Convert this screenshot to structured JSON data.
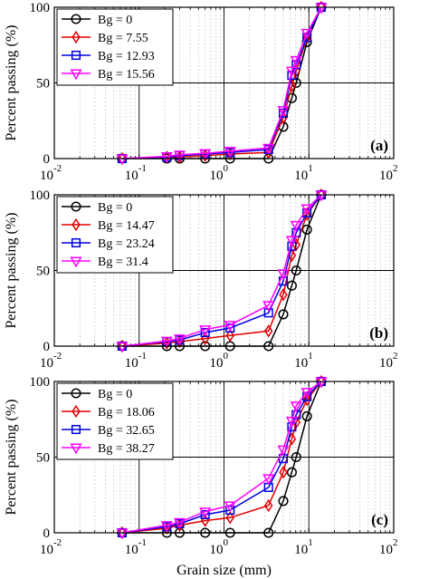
{
  "chart_data": [
    {
      "type": "line",
      "panel_label": "(a)",
      "xlabel": "",
      "ylabel": "Percent passing (%)",
      "xscale": "log",
      "xlim": [
        0.01,
        100
      ],
      "ylim": [
        0,
        100
      ],
      "x_tick_labels": [
        "10",
        "-2",
        "10",
        "-1",
        "10",
        "0",
        "10",
        "1",
        "10",
        "2"
      ],
      "y_tick_labels": [
        "0",
        "50",
        "100"
      ],
      "legend_position": "top-left",
      "grid": "major and minor vertical, major horizontal",
      "x": [
        0.063,
        0.212,
        0.3,
        0.6,
        1.18,
        3.35,
        5.0,
        6.3,
        7.1,
        9.5,
        14.0
      ],
      "series": [
        {
          "name": "Bg = 0",
          "color": "#000000",
          "marker": "circle",
          "values": [
            0,
            0,
            0,
            0,
            0,
            0,
            21,
            40,
            50,
            77,
            100
          ]
        },
        {
          "name": "Bg = 7.55",
          "color": "#e00000",
          "marker": "diamond",
          "values": [
            0,
            1,
            1,
            2,
            3,
            4,
            27,
            48,
            58,
            80,
            100
          ]
        },
        {
          "name": "Bg = 12.93",
          "color": "#0000e0",
          "marker": "square",
          "values": [
            0,
            1,
            2,
            3,
            4,
            6,
            30,
            55,
            62,
            80,
            100
          ]
        },
        {
          "name": "Bg = 15.56",
          "color": "#ff00ff",
          "marker": "triangle-down",
          "values": [
            0,
            1.5,
            2.5,
            3.5,
            5,
            7,
            32,
            58,
            65,
            83,
            100
          ]
        }
      ]
    },
    {
      "type": "line",
      "panel_label": "(b)",
      "xlabel": "",
      "ylabel": "Percent passing (%)",
      "xscale": "log",
      "xlim": [
        0.01,
        100
      ],
      "ylim": [
        0,
        100
      ],
      "x_tick_labels": [
        "10",
        "-2",
        "10",
        "-1",
        "10",
        "0",
        "10",
        "1",
        "10",
        "2"
      ],
      "y_tick_labels": [
        "0",
        "50",
        "100"
      ],
      "legend_position": "top-left",
      "grid": "major and minor vertical, major horizontal",
      "x": [
        0.063,
        0.212,
        0.3,
        0.6,
        1.18,
        3.35,
        5.0,
        6.3,
        7.1,
        9.5,
        14.0
      ],
      "series": [
        {
          "name": "Bg = 0",
          "color": "#000000",
          "marker": "circle",
          "values": [
            0,
            0,
            0,
            0,
            0,
            0,
            21,
            40,
            50,
            77,
            100
          ]
        },
        {
          "name": "Bg = 14.47",
          "color": "#e00000",
          "marker": "diamond",
          "values": [
            0,
            2,
            3,
            5,
            7,
            10,
            34,
            60,
            67,
            87,
            100
          ]
        },
        {
          "name": "Bg = 23.24",
          "color": "#0000e0",
          "marker": "square",
          "values": [
            0,
            3,
            4,
            9,
            12,
            22,
            43,
            66,
            75,
            88,
            100
          ]
        },
        {
          "name": "Bg = 31.4",
          "color": "#ff00ff",
          "marker": "triangle-down",
          "values": [
            0,
            3.5,
            5,
            11,
            14,
            27,
            48,
            70,
            80,
            91,
            100
          ]
        }
      ]
    },
    {
      "type": "line",
      "panel_label": "(c)",
      "xlabel": "Grain size (mm)",
      "ylabel": "Percent passing (%)",
      "xscale": "log",
      "xlim": [
        0.01,
        100
      ],
      "ylim": [
        0,
        100
      ],
      "x_tick_labels": [
        "10",
        "-2",
        "10",
        "-1",
        "10",
        "0",
        "10",
        "1",
        "10",
        "2"
      ],
      "y_tick_labels": [
        "0",
        "50",
        "100"
      ],
      "legend_position": "top-left",
      "grid": "major and minor vertical, major horizontal",
      "x": [
        0.063,
        0.212,
        0.3,
        0.6,
        1.18,
        3.35,
        5.0,
        6.3,
        7.1,
        9.5,
        14.0
      ],
      "series": [
        {
          "name": "Bg = 0",
          "color": "#000000",
          "marker": "circle",
          "values": [
            0,
            0,
            0,
            0,
            0,
            0,
            21,
            40,
            50,
            77,
            100
          ]
        },
        {
          "name": "Bg = 18.06",
          "color": "#e00000",
          "marker": "diamond",
          "values": [
            0,
            3,
            5,
            8,
            10,
            18,
            40,
            62,
            73,
            88,
            100
          ]
        },
        {
          "name": "Bg = 32.65",
          "color": "#0000e0",
          "marker": "square",
          "values": [
            0,
            4,
            6,
            12,
            15,
            30,
            49,
            70,
            78,
            90,
            100
          ]
        },
        {
          "name": "Bg = 38.27",
          "color": "#ff00ff",
          "marker": "triangle-down",
          "values": [
            0,
            5,
            7,
            14,
            18,
            36,
            55,
            74,
            84,
            93,
            100
          ]
        }
      ]
    }
  ]
}
